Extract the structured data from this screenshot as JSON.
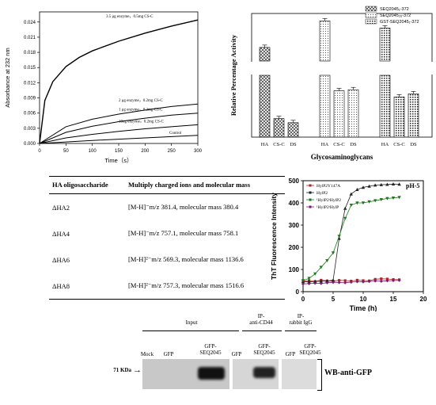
{
  "panelA": {
    "chart_data": {
      "type": "line",
      "xlabel": "Time（s）",
      "ylabel": "Absorbance at 232 nm",
      "xlim": [
        0,
        300
      ],
      "ylim": [
        0,
        0.026
      ],
      "x_ticks": [
        "0",
        "50",
        "100",
        "150",
        "200",
        "250",
        "300"
      ],
      "y_ticks": [
        "0.000",
        "0.003",
        "0.006",
        "0.009",
        "0.012",
        "0.015",
        "0.018",
        "0.021",
        "0.024"
      ],
      "series": [
        {
          "name": "3.5 μg enzyme，0.5mg CS-C",
          "x": [
            0,
            10,
            25,
            50,
            75,
            100,
            150,
            200,
            250,
            300
          ],
          "y": [
            0,
            0.0085,
            0.0122,
            0.0152,
            0.017,
            0.0183,
            0.0202,
            0.0218,
            0.0232,
            0.0244
          ]
        },
        {
          "name": "2 μg enzyme，0.2mg CS-C",
          "x": [
            0,
            50,
            100,
            150,
            200,
            250,
            300
          ],
          "y": [
            0,
            0.0033,
            0.0048,
            0.0058,
            0.0066,
            0.0073,
            0.0078
          ]
        },
        {
          "name": "1 μg enzyme，0.2mg CS-C",
          "x": [
            0,
            50,
            100,
            150,
            200,
            250,
            300
          ],
          "y": [
            0,
            0.0022,
            0.0034,
            0.0043,
            0.005,
            0.0056,
            0.006
          ]
        },
        {
          "name": "10ug enzyme，0.2mg CS-C",
          "x": [
            0,
            50,
            100,
            150,
            200,
            250,
            300
          ],
          "y": [
            0,
            0.0011,
            0.0018,
            0.0024,
            0.0029,
            0.0033,
            0.0037
          ]
        },
        {
          "name": "Control",
          "x": [
            0,
            100,
            200,
            300
          ],
          "y": [
            0,
            0.0006,
            0.0011,
            0.0016
          ]
        }
      ]
    }
  },
  "panelB": {
    "chart_data": {
      "type": "bar",
      "xlabel": "Glycosaminoglycans",
      "ylabel": "Relative Percentage Activity",
      "categories": [
        "HA",
        "CS-C",
        "DS",
        "HA",
        "CS-C",
        "DS",
        "HA",
        "CS-C",
        "DS"
      ],
      "groups": [
        {
          "name": "SEQ2045₁-372",
          "values": [
            100,
            18,
            14
          ]
        },
        {
          "name": "SEQ2045₂₆-372",
          "values": [
            178,
            45,
            46
          ]
        },
        {
          "name": "GST-SEQ2045₁-372",
          "values": [
            157,
            39,
            42
          ]
        }
      ],
      "axis_broken": true,
      "legend_position": "top-right"
    }
  },
  "table": {
    "headers": [
      "HA oligosaccharide",
      "Multiply charged ions and molecular mass"
    ],
    "rows": [
      [
        "ΔHA2",
        "[M-H]⁻m/z 381.4, molecular mass 380.4"
      ],
      [
        "ΔHA4",
        "[M-H]⁻m/z 757.1, molecular mass 758.1"
      ],
      [
        "ΔHA6",
        "[M-H]²⁻m/z 569.3, molecular mass 1136.6"
      ],
      [
        "ΔHA8",
        "[M-H]²⁻m/z 757.3, molecular mass 1516.6"
      ]
    ]
  },
  "panelD": {
    "chart_data": {
      "type": "line",
      "xlabel": "Time (h)",
      "ylabel": "ThT Fluorescence Intensity",
      "annotation": "pH-5",
      "xlim": [
        0,
        20
      ],
      "ylim": [
        0,
        500
      ],
      "x_ticks": [
        "0",
        "5",
        "10",
        "15",
        "20"
      ],
      "y_ticks": [
        "0",
        "100",
        "200",
        "300",
        "400",
        "500"
      ],
      "series": [
        {
          "name": "HylP2Y147A",
          "color": "#b22222",
          "x": [
            0,
            1,
            2,
            3,
            4,
            5,
            6,
            7,
            8,
            9,
            10,
            11,
            12,
            13,
            14,
            15,
            16
          ],
          "y": [
            48,
            50,
            46,
            52,
            49,
            47,
            51,
            50,
            48,
            52,
            50,
            49,
            56,
            58,
            57,
            55,
            54
          ]
        },
        {
          "name": "HylP2",
          "color": "#222222",
          "x": [
            0,
            1,
            2,
            3,
            4,
            5,
            6,
            7,
            8,
            9,
            10,
            11,
            12,
            13,
            14,
            15,
            16
          ],
          "y": [
            45,
            44,
            46,
            47,
            48,
            52,
            240,
            375,
            440,
            460,
            470,
            475,
            480,
            482,
            483,
            485,
            484
          ]
        },
        {
          "name": "¹HylP2ʳHylP2",
          "color": "#1a7a1a",
          "x": [
            0,
            1,
            2,
            3,
            4,
            5,
            6,
            7,
            8,
            9,
            10,
            11,
            12,
            13,
            14,
            15,
            16
          ],
          "y": [
            50,
            60,
            80,
            110,
            140,
            175,
            250,
            330,
            390,
            400,
            400,
            405,
            410,
            415,
            420,
            422,
            425
          ]
        },
        {
          "name": "¹HylP2ʳHylP",
          "color": "#7a1a7a",
          "x": [
            0,
            1,
            2,
            3,
            4,
            5,
            6,
            7,
            8,
            9,
            10,
            11,
            12,
            13,
            14,
            15,
            16
          ],
          "y": [
            35,
            36,
            38,
            37,
            40,
            42,
            41,
            40,
            43,
            45,
            44,
            46,
            48,
            47,
            49,
            50,
            51
          ]
        }
      ],
      "legend_position": "top-left"
    }
  },
  "blot": {
    "group_labels": [
      "Input",
      "IP-\nanti-CD44",
      "IP-\nrabbit IgG"
    ],
    "lane_labels": [
      "Mock",
      "GFP",
      "GFP-\nSEQ2045",
      "GFP",
      "GFP-\nSEQ2045",
      "GFP",
      "GFP-\nSEQ2045"
    ],
    "marker": "71 KDa",
    "detection": "WB-anti-GFP"
  }
}
